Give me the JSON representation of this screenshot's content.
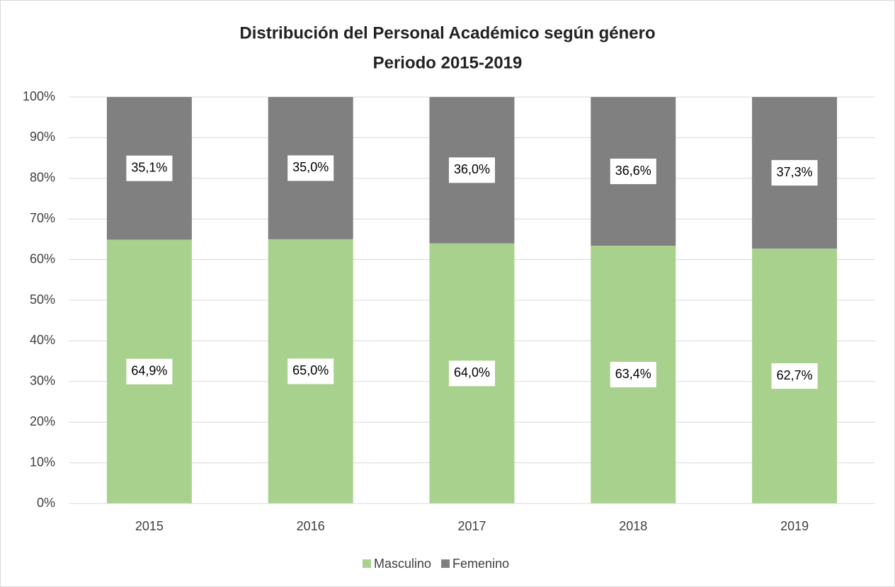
{
  "chart_data": {
    "type": "stacked_bar",
    "title": "Distribución del Personal Académico según género",
    "subtitle": "Periodo 2015-2019",
    "categories": [
      "2015",
      "2016",
      "2017",
      "2018",
      "2019"
    ],
    "series": [
      {
        "name": "Masculino",
        "color": "#a9d18e",
        "values": [
          64.9,
          65.0,
          64.0,
          63.4,
          62.7
        ],
        "value_labels": [
          "64,9%",
          "65,0%",
          "64,0%",
          "63,4%",
          "62,7%"
        ]
      },
      {
        "name": "Femenino",
        "color": "#808080",
        "values": [
          35.1,
          35.0,
          36.0,
          36.6,
          37.3
        ],
        "value_labels": [
          "35,1%",
          "35,0%",
          "36,0%",
          "36,6%",
          "37,3%"
        ]
      }
    ],
    "ylim": [
      0,
      100
    ],
    "yticks": [
      {
        "value": 0,
        "label": "0%"
      },
      {
        "value": 10,
        "label": "10%"
      },
      {
        "value": 20,
        "label": "20%"
      },
      {
        "value": 30,
        "label": "30%"
      },
      {
        "value": 40,
        "label": "40%"
      },
      {
        "value": 50,
        "label": "50%"
      },
      {
        "value": 60,
        "label": "60%"
      },
      {
        "value": 70,
        "label": "70%"
      },
      {
        "value": 80,
        "label": "80%"
      },
      {
        "value": 90,
        "label": "90%"
      },
      {
        "value": 100,
        "label": "100%"
      }
    ],
    "grid": true,
    "legend": "bottom"
  }
}
